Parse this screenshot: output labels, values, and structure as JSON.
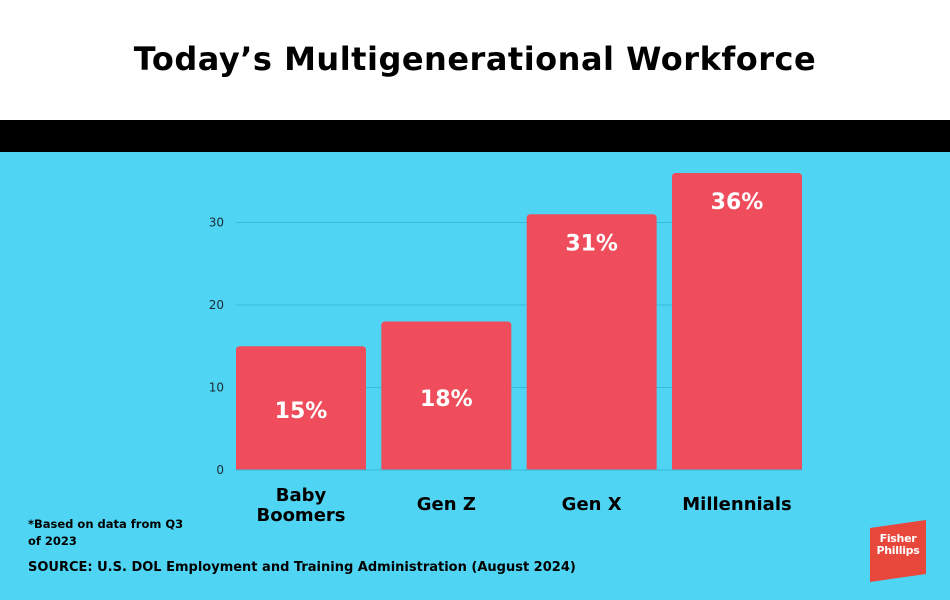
{
  "title": "Today’s Multigenerational Workforce",
  "footnote": "*Based on data from Q3 of 2023",
  "source": "SOURCE: U.S. DOL Employment and Training Administration (August 2024)",
  "logo": {
    "line1": "Fisher",
    "line2": "Phillips"
  },
  "colors": {
    "background": "#4fd4f3",
    "bar": "#ef4d5c",
    "header_bar": "#000000"
  },
  "chart_data": {
    "type": "bar",
    "title": "Today’s Multigenerational Workforce",
    "categories": [
      "Baby Boomers",
      "Gen Z",
      "Gen X",
      "Millennials"
    ],
    "values": [
      15,
      18,
      31,
      36
    ],
    "data_labels": [
      "15%",
      "18%",
      "31%",
      "36%"
    ],
    "yticks": [
      0,
      10,
      20,
      30
    ],
    "ylim": [
      0,
      36
    ],
    "xlabel": "",
    "ylabel": "",
    "grid": true,
    "legend": "none"
  }
}
